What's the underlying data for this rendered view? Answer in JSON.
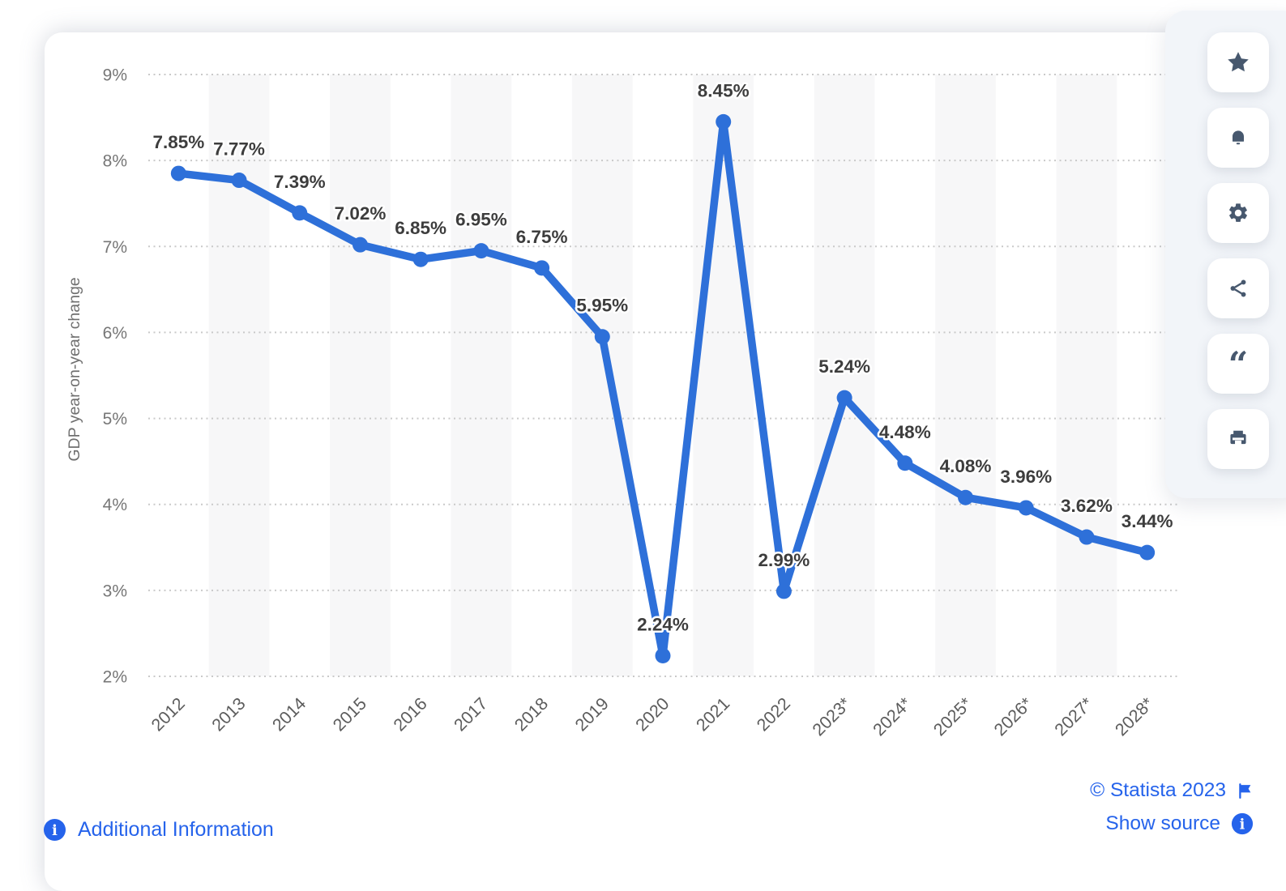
{
  "chart_data": {
    "type": "line",
    "title": "",
    "ylabel": "GDP year-on-year change",
    "xlabel": "",
    "categories": [
      "2012",
      "2013",
      "2014",
      "2015",
      "2016",
      "2017",
      "2018",
      "2019",
      "2020",
      "2021",
      "2022",
      "2023*",
      "2024*",
      "2025*",
      "2026*",
      "2027*",
      "2028*"
    ],
    "values": [
      7.85,
      7.77,
      7.39,
      7.02,
      6.85,
      6.95,
      6.75,
      5.95,
      2.24,
      8.45,
      2.99,
      5.24,
      4.48,
      4.08,
      3.96,
      3.62,
      3.44
    ],
    "data_label_format": "{value}%",
    "ylim": [
      2,
      9
    ],
    "ytick_step": 1,
    "ytick_suffix": "%",
    "yticks": [
      "2%",
      "3%",
      "4%",
      "5%",
      "6%",
      "7%",
      "8%",
      "9%"
    ],
    "grid": "horizontal-dotted",
    "legend": "none",
    "line_color": "#2e70d9",
    "point_color": "#2e70d9",
    "band_color": "#f7f7f8",
    "banded_categories": [
      "2013",
      "2015",
      "2017",
      "2019",
      "2021",
      "2023*",
      "2025*",
      "2027*"
    ],
    "data_label_color": "#3d3d3d",
    "tick_label_color": "#767676",
    "x_label_color": "#5c5c5c",
    "axis_title_color": "#6f6f6f",
    "gridline_color": "#c9c9c9"
  },
  "toolbar": {
    "buttons": [
      {
        "name": "favorite-star-button",
        "icon": "star-icon"
      },
      {
        "name": "notifications-button",
        "icon": "bell-icon"
      },
      {
        "name": "settings-button",
        "icon": "gear-icon"
      },
      {
        "name": "share-button",
        "icon": "share-nodes-icon"
      },
      {
        "name": "citation-button",
        "icon": "quote-icon"
      },
      {
        "name": "print-button",
        "icon": "printer-icon"
      }
    ]
  },
  "footer": {
    "additional_information": "Additional Information",
    "copyright": "© Statista 2023",
    "show_source": "Show source"
  },
  "colors": {
    "accent_blue": "#2e70d9",
    "link_blue": "#2563eb",
    "icon_slate": "#47586e",
    "panel_bg": "#f2f5f9"
  }
}
